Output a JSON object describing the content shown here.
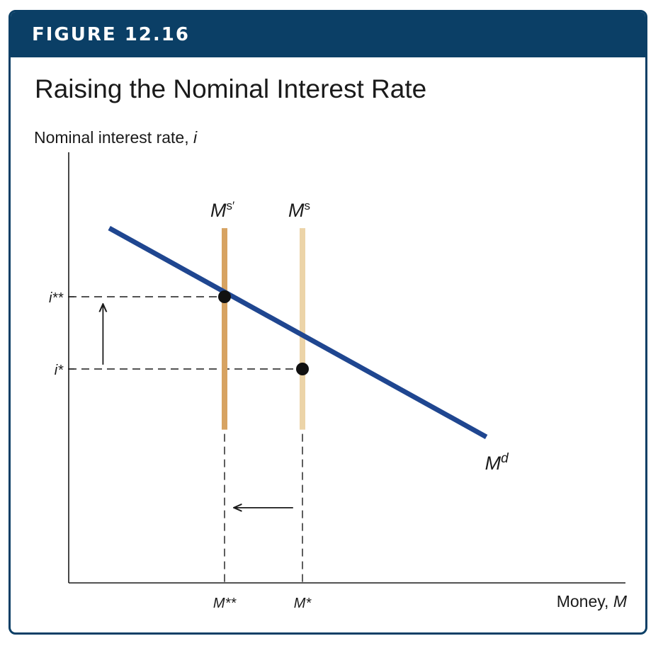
{
  "figure": {
    "label": "FIGURE 12.16",
    "title": "Raising the Nominal Interest Rate"
  },
  "colors": {
    "header_bg": "#0b3f66",
    "demand_curve": "#1f4690",
    "supply_new": "#d7a362",
    "supply_old": "#ecd4a8",
    "axis": "#1a1a1a"
  },
  "chart_data": {
    "type": "line",
    "ylabel": "Nominal interest rate, ",
    "ylabel_var": "i",
    "xlabel": "Money, ",
    "xlabel_var": "M",
    "series": [
      {
        "name": "M",
        "name_sup": "d",
        "x": [
          0.13,
          1.34
        ],
        "y": [
          0.975,
          -0.47
        ]
      }
    ],
    "vertical_lines": [
      {
        "name": "M",
        "name_sup": "s′",
        "x": 0.5,
        "y_range": [
          -0.42,
          0.975
        ]
      },
      {
        "name": "M",
        "name_sup": "s",
        "x": 0.75,
        "y_range": [
          -0.42,
          0.975
        ]
      }
    ],
    "points": [
      {
        "x": 0.5,
        "y": 0.5
      },
      {
        "x": 0.75,
        "y": 0.0
      }
    ],
    "y_ticks": [
      {
        "value": 0.5,
        "label": "i**"
      },
      {
        "value": 0.0,
        "label": "i*"
      }
    ],
    "x_ticks": [
      {
        "value": 0.5,
        "label": "M**"
      },
      {
        "value": 0.75,
        "label": "M*"
      }
    ],
    "annotations": [
      {
        "type": "arrow",
        "direction": "up",
        "from": [
          0.11,
          0.03
        ],
        "to": [
          0.11,
          0.45
        ]
      },
      {
        "type": "arrow",
        "direction": "left",
        "from": [
          0.72,
          -0.96
        ],
        "to": [
          0.53,
          -0.96
        ]
      }
    ],
    "xlim": [
      -0.05,
      1.8
    ],
    "ylim": [
      -1.5,
      1.5
    ],
    "grid": false
  }
}
